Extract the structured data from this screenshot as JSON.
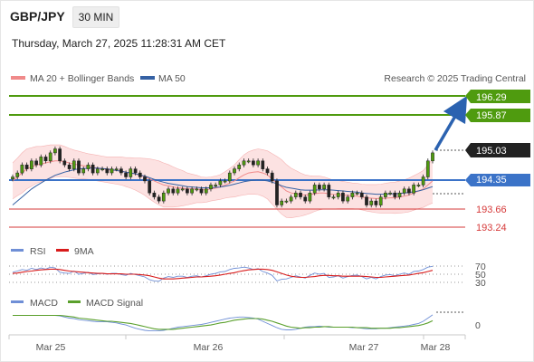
{
  "header": {
    "instrument": "GBP/JPY",
    "timeframe": "30 MIN",
    "timestamp": "Thursday, March 27, 2025 11:28:31 AM CET"
  },
  "colors": {
    "resistance": "#4f9b0f",
    "current": "#222222",
    "pivot": "#3b73c8",
    "support": "#d63a3a",
    "ma20": "#f08a8a",
    "band": "#fbd5d5",
    "ma50": "#3561a4",
    "rsi": "#6f8fd6",
    "rsi_ma": "#d81b1b",
    "macd": "#6f8fd6",
    "macd_signal": "#5aa02c",
    "arrow": "#2b62b0"
  },
  "main_legend": {
    "ma20": "MA 20 + Bollinger Bands",
    "ma50": "MA 50",
    "credit": "Research © 2025 Trading Central"
  },
  "levels": {
    "r2": "196.29",
    "r1": "195.87",
    "current": "195.03",
    "pivot": "194.35",
    "s1": "193.66",
    "s2": "193.24"
  },
  "rsi_panel": {
    "legend_rsi": "RSI",
    "legend_ma": "9MA",
    "levels": [
      "70",
      "50",
      "30"
    ]
  },
  "macd_panel": {
    "legend_macd": "MACD",
    "legend_signal": "MACD Signal",
    "zero": "0"
  },
  "x_axis": {
    "labels": [
      "Mar 25",
      "Mar 26",
      "Mar 27",
      "Mar 28"
    ]
  },
  "chart_data": {
    "type": "candlestick",
    "title": "GBP/JPY",
    "timeframe": "30 MIN",
    "y_range": [
      192.9,
      196.6
    ],
    "price": [
      194.4,
      194.5,
      194.7,
      194.6,
      194.8,
      194.7,
      194.9,
      194.8,
      195.0,
      195.1,
      194.8,
      194.7,
      194.6,
      194.8,
      194.5,
      194.6,
      194.7,
      194.5,
      194.6,
      194.6,
      194.5,
      194.6,
      194.6,
      194.5,
      194.4,
      194.6,
      194.5,
      194.4,
      194.3,
      194.0,
      193.9,
      193.8,
      194.0,
      194.1,
      194.0,
      194.1,
      194.1,
      194.0,
      194.1,
      194.1,
      194.0,
      194.1,
      194.2,
      194.2,
      194.3,
      194.3,
      194.5,
      194.6,
      194.7,
      194.8,
      194.8,
      194.7,
      194.8,
      194.6,
      194.5,
      194.3,
      193.7,
      193.8,
      193.8,
      193.9,
      194.0,
      193.9,
      193.8,
      194.0,
      194.2,
      194.1,
      194.2,
      193.9,
      193.9,
      194.0,
      193.8,
      193.9,
      194.0,
      194.0,
      193.9,
      193.7,
      193.8,
      193.7,
      193.9,
      194.0,
      194.0,
      193.9,
      194.0,
      194.1,
      194.0,
      194.2,
      194.2,
      194.4,
      194.8,
      195.0
    ],
    "ma20": [
      194.3,
      194.4,
      194.5,
      194.6,
      194.65,
      194.7,
      194.72,
      194.75,
      194.78,
      194.8,
      194.8,
      194.78,
      194.75,
      194.72,
      194.7,
      194.68,
      194.66,
      194.64,
      194.62,
      194.6,
      194.58,
      194.57,
      194.56,
      194.55,
      194.52,
      194.5,
      194.47,
      194.44,
      194.4,
      194.35,
      194.3,
      194.25,
      194.2,
      194.18,
      194.15,
      194.13,
      194.12,
      194.1,
      194.1,
      194.1,
      194.08,
      194.08,
      194.1,
      194.12,
      194.15,
      194.2,
      194.25,
      194.3,
      194.38,
      194.45,
      194.5,
      194.52,
      194.53,
      194.5,
      194.45,
      194.35,
      194.25,
      194.15,
      194.05,
      194.0,
      193.98,
      193.96,
      193.95,
      193.96,
      193.98,
      194.0,
      194.0,
      193.98,
      193.96,
      193.96,
      193.95,
      193.94,
      193.93,
      193.92,
      193.9,
      193.88,
      193.87,
      193.86,
      193.86,
      193.87,
      193.88,
      193.88,
      193.9,
      193.92,
      193.95,
      194.0,
      194.05,
      194.1,
      194.2,
      194.3
    ],
    "ma50": [
      193.7,
      193.8,
      193.9,
      194.0,
      194.1,
      194.18,
      194.25,
      194.32,
      194.38,
      194.44,
      194.48,
      194.52,
      194.55,
      194.58,
      194.6,
      194.61,
      194.62,
      194.62,
      194.62,
      194.61,
      194.6,
      194.58,
      194.56,
      194.54,
      194.52,
      194.5,
      194.48,
      194.45,
      194.42,
      194.38,
      194.34,
      194.3,
      194.27,
      194.24,
      194.22,
      194.2,
      194.18,
      194.16,
      194.15,
      194.14,
      194.13,
      194.13,
      194.13,
      194.14,
      194.15,
      194.17,
      194.19,
      194.22,
      194.25,
      194.28,
      194.3,
      194.32,
      194.33,
      194.32,
      194.3,
      194.27,
      194.23,
      194.18,
      194.14,
      194.12,
      194.1,
      194.08,
      194.07,
      194.07,
      194.07,
      194.08,
      194.08,
      194.08,
      194.07,
      194.06,
      194.05,
      194.04,
      194.03,
      194.02,
      194.0,
      193.99,
      193.98,
      193.97,
      193.97,
      193.97,
      193.98,
      193.98,
      193.99,
      194.0,
      194.01,
      194.03,
      194.05,
      194.08,
      194.12,
      194.16
    ],
    "bb_width": [
      0.45,
      0.47,
      0.5,
      0.5,
      0.48,
      0.46,
      0.44,
      0.43,
      0.42,
      0.4,
      0.4,
      0.38,
      0.36,
      0.35,
      0.34,
      0.33,
      0.32,
      0.32,
      0.32,
      0.32,
      0.32,
      0.33,
      0.34,
      0.35,
      0.36,
      0.38,
      0.4,
      0.43,
      0.46,
      0.5,
      0.53,
      0.55,
      0.55,
      0.53,
      0.5,
      0.47,
      0.44,
      0.4,
      0.37,
      0.34,
      0.32,
      0.31,
      0.3,
      0.3,
      0.31,
      0.33,
      0.36,
      0.4,
      0.45,
      0.5,
      0.53,
      0.55,
      0.57,
      0.58,
      0.6,
      0.63,
      0.66,
      0.68,
      0.66,
      0.62,
      0.58,
      0.54,
      0.5,
      0.47,
      0.44,
      0.42,
      0.4,
      0.38,
      0.36,
      0.35,
      0.34,
      0.33,
      0.32,
      0.32,
      0.32,
      0.33,
      0.34,
      0.35,
      0.36,
      0.37,
      0.38,
      0.39,
      0.4,
      0.41,
      0.42,
      0.43,
      0.44,
      0.46,
      0.5,
      0.55
    ],
    "rsi_range": [
      20,
      80
    ],
    "rsi": [
      55,
      58,
      62,
      60,
      65,
      62,
      66,
      63,
      68,
      66,
      55,
      53,
      52,
      58,
      50,
      52,
      55,
      49,
      51,
      52,
      50,
      52,
      52,
      49,
      47,
      52,
      49,
      46,
      43,
      36,
      33,
      32,
      40,
      44,
      42,
      45,
      45,
      42,
      45,
      46,
      43,
      46,
      50,
      52,
      56,
      57,
      62,
      65,
      66,
      68,
      66,
      62,
      64,
      57,
      53,
      47,
      33,
      37,
      38,
      42,
      46,
      43,
      40,
      47,
      53,
      50,
      52,
      42,
      43,
      46,
      40,
      44,
      47,
      48,
      44,
      38,
      42,
      38,
      44,
      48,
      49,
      46,
      50,
      53,
      50,
      57,
      58,
      62,
      68,
      70
    ],
    "rsi_ma": [
      52,
      53,
      55,
      57,
      58,
      60,
      61,
      62,
      63,
      63,
      62,
      60,
      58,
      57,
      56,
      55,
      54,
      53,
      52,
      52,
      51,
      51,
      51,
      51,
      50,
      50,
      50,
      49,
      48,
      46,
      43,
      40,
      38,
      38,
      38,
      39,
      40,
      41,
      42,
      43,
      43,
      44,
      45,
      46,
      48,
      50,
      52,
      54,
      57,
      59,
      61,
      62,
      63,
      63,
      62,
      60,
      56,
      52,
      48,
      45,
      43,
      42,
      42,
      43,
      44,
      46,
      47,
      47,
      46,
      46,
      45,
      45,
      45,
      45,
      45,
      44,
      43,
      42,
      42,
      43,
      44,
      45,
      46,
      47,
      48,
      50,
      52,
      54,
      57,
      60
    ],
    "macd_range": [
      -0.24,
      0.2
    ],
    "macd": [
      0.09,
      0.09,
      0.09,
      0.09,
      0.09,
      0.09,
      0.09,
      0.09,
      0.09,
      0.09,
      0.08,
      0.06,
      0.04,
      0.03,
      0.01,
      0.0,
      -0.01,
      -0.02,
      -0.03,
      -0.03,
      -0.03,
      -0.04,
      -0.05,
      -0.07,
      -0.09,
      -0.12,
      -0.15,
      -0.17,
      -0.19,
      -0.2,
      -0.2,
      -0.2,
      -0.19,
      -0.17,
      -0.15,
      -0.13,
      -0.12,
      -0.11,
      -0.1,
      -0.09,
      -0.08,
      -0.06,
      -0.04,
      -0.02,
      0.0,
      0.02,
      0.04,
      0.05,
      0.06,
      0.06,
      0.05,
      0.04,
      0.02,
      -0.02,
      -0.06,
      -0.1,
      -0.14,
      -0.17,
      -0.18,
      -0.18,
      -0.17,
      -0.15,
      -0.13,
      -0.12,
      -0.12,
      -0.11,
      -0.12,
      -0.13,
      -0.13,
      -0.13,
      -0.13,
      -0.13,
      -0.14,
      -0.14,
      -0.15,
      -0.16,
      -0.16,
      -0.16,
      -0.15,
      -0.15,
      -0.14,
      -0.13,
      -0.12,
      -0.11,
      -0.1,
      -0.08,
      -0.06,
      -0.02,
      0.04,
      0.1
    ],
    "macd_signal": [
      0.09,
      0.09,
      0.09,
      0.09,
      0.09,
      0.09,
      0.09,
      0.09,
      0.09,
      0.09,
      0.09,
      0.08,
      0.07,
      0.06,
      0.04,
      0.03,
      0.02,
      0.01,
      0.0,
      -0.01,
      -0.02,
      -0.02,
      -0.03,
      -0.04,
      -0.05,
      -0.06,
      -0.08,
      -0.1,
      -0.12,
      -0.14,
      -0.16,
      -0.17,
      -0.17,
      -0.17,
      -0.17,
      -0.16,
      -0.15,
      -0.14,
      -0.13,
      -0.12,
      -0.11,
      -0.1,
      -0.09,
      -0.07,
      -0.05,
      -0.04,
      -0.02,
      0.0,
      0.01,
      0.02,
      0.03,
      0.03,
      0.03,
      0.02,
      0.0,
      -0.02,
      -0.05,
      -0.08,
      -0.11,
      -0.13,
      -0.14,
      -0.15,
      -0.14,
      -0.14,
      -0.13,
      -0.13,
      -0.12,
      -0.12,
      -0.13,
      -0.13,
      -0.13,
      -0.13,
      -0.13,
      -0.14,
      -0.14,
      -0.14,
      -0.15,
      -0.15,
      -0.15,
      -0.15,
      -0.15,
      -0.14,
      -0.14,
      -0.13,
      -0.12,
      -0.11,
      -0.1,
      -0.08,
      -0.05,
      -0.01
    ]
  }
}
